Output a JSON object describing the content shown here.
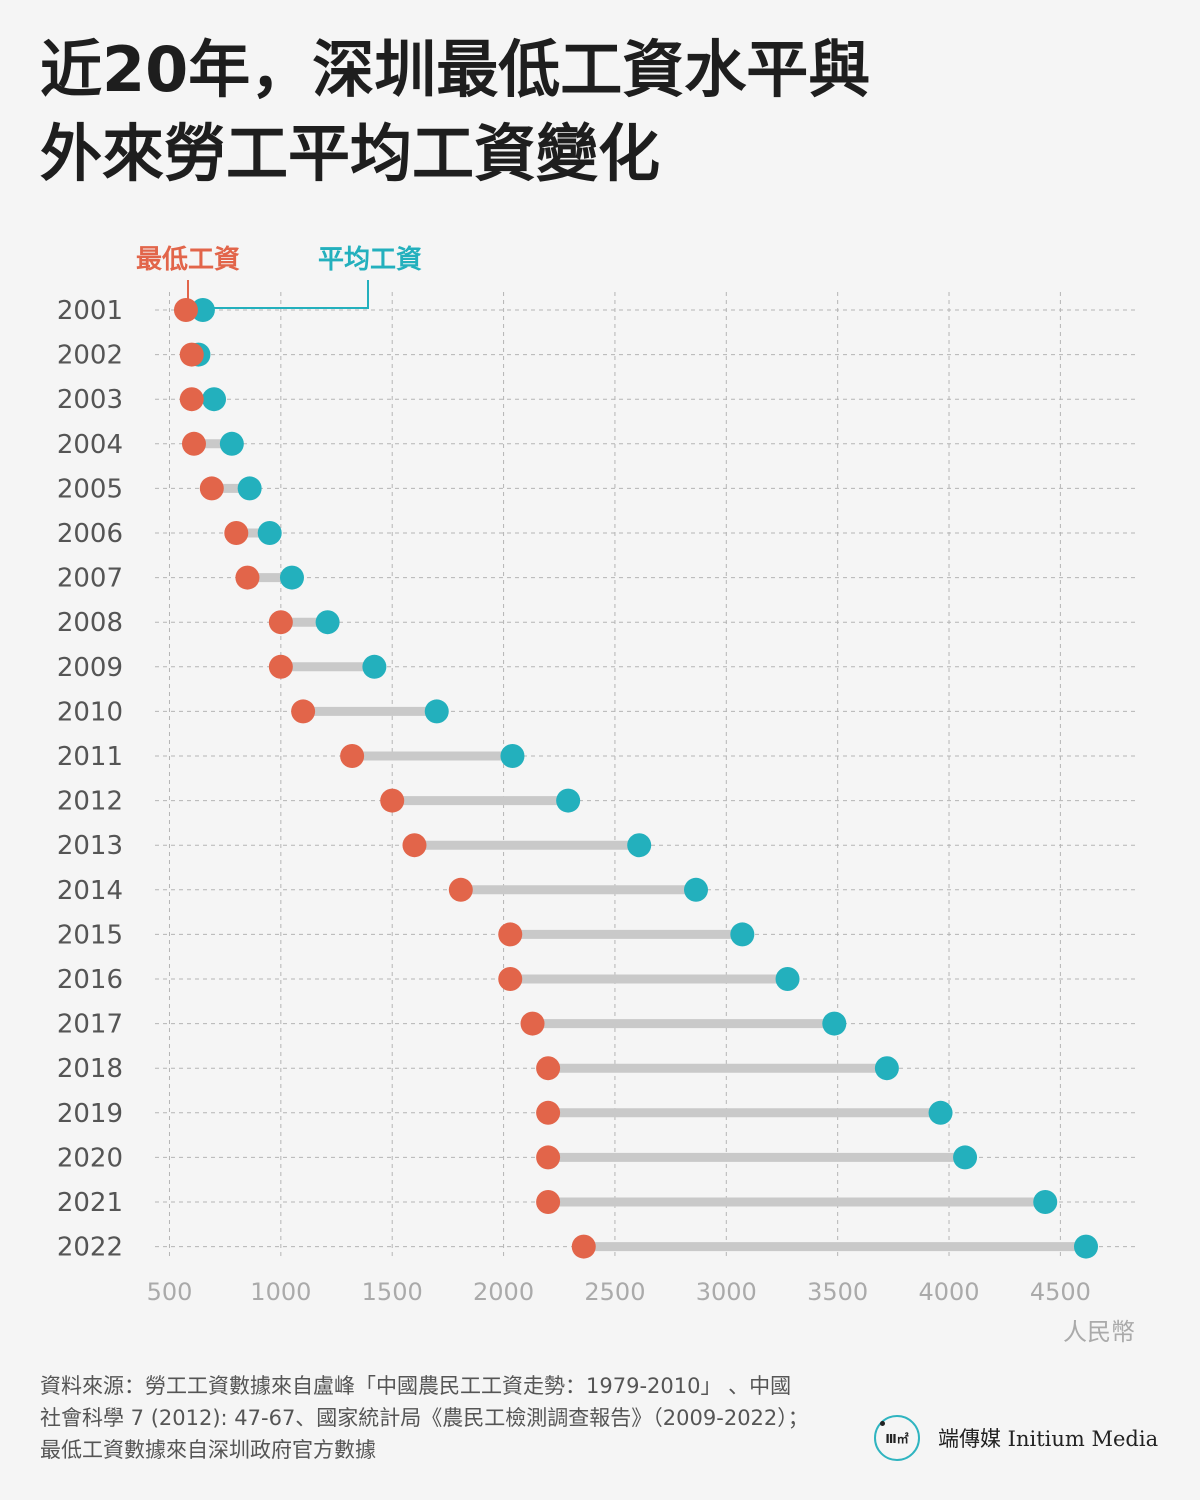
{
  "title": {
    "line1": "近20年，深圳最低工資水平與",
    "line2": "外來勞工平均工資變化"
  },
  "colors": {
    "min_wage": "#e2654a",
    "avg_wage": "#23b0bd",
    "connector": "#c9c9c9",
    "grid": "#b5b5b5",
    "tick_label": "#555555",
    "axis_label": "#aaaaaa"
  },
  "chart_data": {
    "type": "dumbbell",
    "categories": [
      "2001",
      "2002",
      "2003",
      "2004",
      "2005",
      "2006",
      "2007",
      "2008",
      "2009",
      "2010",
      "2011",
      "2012",
      "2013",
      "2014",
      "2015",
      "2016",
      "2017",
      "2018",
      "2019",
      "2020",
      "2021",
      "2022"
    ],
    "series": [
      {
        "name": "最低工資",
        "values": [
          574,
          600,
          600,
          610,
          690,
          800,
          850,
          1000,
          1000,
          1100,
          1320,
          1500,
          1600,
          1808,
          2030,
          2030,
          2130,
          2200,
          2200,
          2200,
          2200,
          2360
        ]
      },
      {
        "name": "平均工資",
        "values": [
          650,
          630,
          700,
          780,
          860,
          950,
          1050,
          1210,
          1420,
          1700,
          2040,
          2290,
          2609,
          2864,
          3072,
          3275,
          3485,
          3721,
          3962,
          4072,
          4432,
          4615
        ]
      }
    ],
    "x_ticks": [
      "500",
      "1000",
      "1500",
      "2000",
      "2500",
      "3000",
      "3500",
      "4000",
      "4500"
    ],
    "xlim": [
      435,
      4835
    ],
    "xlabel": "人民幣",
    "legend": {
      "position": "top-left",
      "items": [
        "最低工資",
        "平均工資"
      ]
    },
    "grid": true
  },
  "source": {
    "line1": "資料來源：勞工工資數據來自盧峰「中國農民工工資走勢：1979-2010」 、中國",
    "line2": "社會科學 7 (2012): 47-67、國家統計局《農民工檢測調查報告》（2009-2022）；",
    "line3": "最低工資數據來自深圳政府官方數據"
  },
  "brand": {
    "logo_icon": "initium-logo-icon",
    "logo_text": "Ⅲ㎡",
    "name": "端傳媒 Initium Media"
  }
}
